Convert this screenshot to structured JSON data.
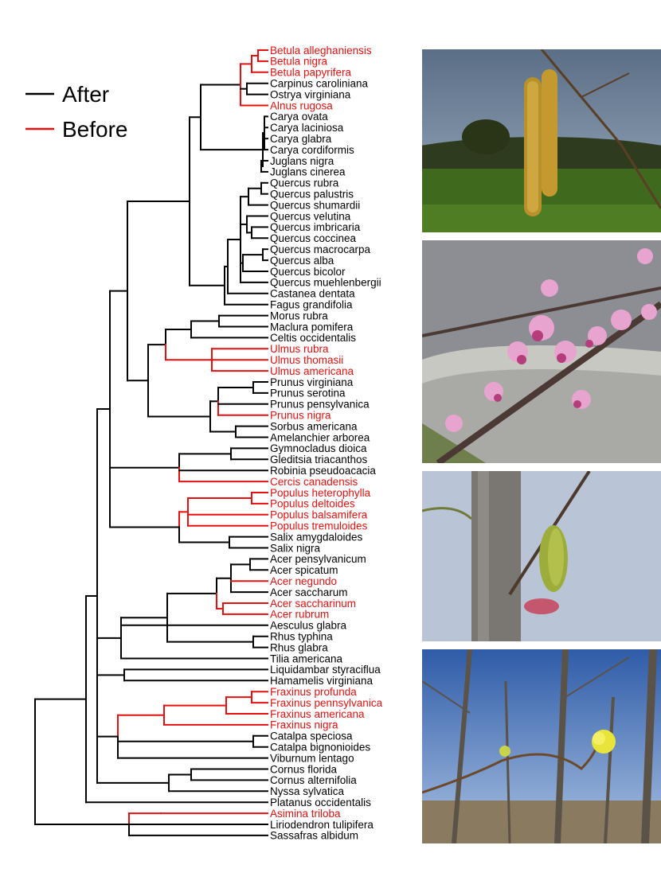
{
  "legend": {
    "items": [
      {
        "label": "After",
        "color": "#000000"
      },
      {
        "label": "Before",
        "color": "#e8100f"
      }
    ]
  },
  "tree": {
    "tips": [
      {
        "name": "Betula alleghaniensis",
        "group": "before"
      },
      {
        "name": "Betula nigra",
        "group": "before"
      },
      {
        "name": "Betula papyrifera",
        "group": "before"
      },
      {
        "name": "Carpinus caroliniana",
        "group": "after"
      },
      {
        "name": "Ostrya virginiana",
        "group": "after"
      },
      {
        "name": "Alnus rugosa",
        "group": "before"
      },
      {
        "name": "Carya ovata",
        "group": "after"
      },
      {
        "name": "Carya laciniosa",
        "group": "after"
      },
      {
        "name": "Carya glabra",
        "group": "after"
      },
      {
        "name": "Carya cordiformis",
        "group": "after"
      },
      {
        "name": "Juglans nigra",
        "group": "after"
      },
      {
        "name": "Juglans cinerea",
        "group": "after"
      },
      {
        "name": "Quercus rubra",
        "group": "after"
      },
      {
        "name": "Quercus palustris",
        "group": "after"
      },
      {
        "name": "Quercus shumardii",
        "group": "after"
      },
      {
        "name": "Quercus velutina",
        "group": "after"
      },
      {
        "name": "Quercus imbricaria",
        "group": "after"
      },
      {
        "name": "Quercus coccinea",
        "group": "after"
      },
      {
        "name": "Quercus macrocarpa",
        "group": "after"
      },
      {
        "name": "Quercus alba",
        "group": "after"
      },
      {
        "name": "Quercus bicolor",
        "group": "after"
      },
      {
        "name": "Quercus muehlenbergii",
        "group": "after"
      },
      {
        "name": "Castanea dentata",
        "group": "after"
      },
      {
        "name": "Fagus grandifolia",
        "group": "after"
      },
      {
        "name": "Morus rubra",
        "group": "after"
      },
      {
        "name": "Maclura pomifera",
        "group": "after"
      },
      {
        "name": "Celtis occidentalis",
        "group": "after"
      },
      {
        "name": "Ulmus rubra",
        "group": "before"
      },
      {
        "name": "Ulmus thomasii",
        "group": "before"
      },
      {
        "name": "Ulmus americana",
        "group": "before"
      },
      {
        "name": "Prunus virginiana",
        "group": "after"
      },
      {
        "name": "Prunus serotina",
        "group": "after"
      },
      {
        "name": "Prunus pensylvanica",
        "group": "after"
      },
      {
        "name": "Prunus nigra",
        "group": "before"
      },
      {
        "name": "Sorbus americana",
        "group": "after"
      },
      {
        "name": "Amelanchier arborea",
        "group": "after"
      },
      {
        "name": "Gymnocladus dioica",
        "group": "after"
      },
      {
        "name": "Gleditsia triacanthos",
        "group": "after"
      },
      {
        "name": "Robinia pseudoacacia",
        "group": "after"
      },
      {
        "name": "Cercis canadensis",
        "group": "before"
      },
      {
        "name": "Populus heterophylla",
        "group": "before"
      },
      {
        "name": "Populus deltoides",
        "group": "before"
      },
      {
        "name": "Populus balsamifera",
        "group": "before"
      },
      {
        "name": "Populus tremuloides",
        "group": "before"
      },
      {
        "name": "Salix amygdaloides",
        "group": "after"
      },
      {
        "name": "Salix nigra",
        "group": "after"
      },
      {
        "name": "Acer pensylvanicum",
        "group": "after"
      },
      {
        "name": "Acer spicatum",
        "group": "after"
      },
      {
        "name": "Acer negundo",
        "group": "before"
      },
      {
        "name": "Acer saccharum",
        "group": "after"
      },
      {
        "name": "Acer saccharinum",
        "group": "before"
      },
      {
        "name": "Acer rubrum",
        "group": "before"
      },
      {
        "name": "Aesculus glabra",
        "group": "after"
      },
      {
        "name": "Rhus typhina",
        "group": "after"
      },
      {
        "name": "Rhus glabra",
        "group": "after"
      },
      {
        "name": "Tilia americana",
        "group": "after"
      },
      {
        "name": "Liquidambar styraciflua",
        "group": "after"
      },
      {
        "name": "Hamamelis virginiana",
        "group": "after"
      },
      {
        "name": "Fraxinus profunda",
        "group": "before"
      },
      {
        "name": "Fraxinus pennsylvanica",
        "group": "before"
      },
      {
        "name": "Fraxinus americana",
        "group": "before"
      },
      {
        "name": "Fraxinus nigra",
        "group": "before"
      },
      {
        "name": "Catalpa speciosa",
        "group": "after"
      },
      {
        "name": "Catalpa bignonioides",
        "group": "after"
      },
      {
        "name": "Viburnum lentago",
        "group": "after"
      },
      {
        "name": "Cornus florida",
        "group": "after"
      },
      {
        "name": "Cornus alternifolia",
        "group": "after"
      },
      {
        "name": "Nyssa sylvatica",
        "group": "after"
      },
      {
        "name": "Platanus occidentalis",
        "group": "after"
      },
      {
        "name": "Asimina triloba",
        "group": "before"
      },
      {
        "name": "Liriodendron tulipifera",
        "group": "after"
      },
      {
        "name": "Sassafras albidum",
        "group": "after"
      }
    ]
  },
  "photos": [
    {
      "subject": "birch-catkins-photo"
    },
    {
      "subject": "redbud-flowers-photo"
    },
    {
      "subject": "green-catkin-photo"
    },
    {
      "subject": "yellow-flower-bud-photo"
    }
  ]
}
